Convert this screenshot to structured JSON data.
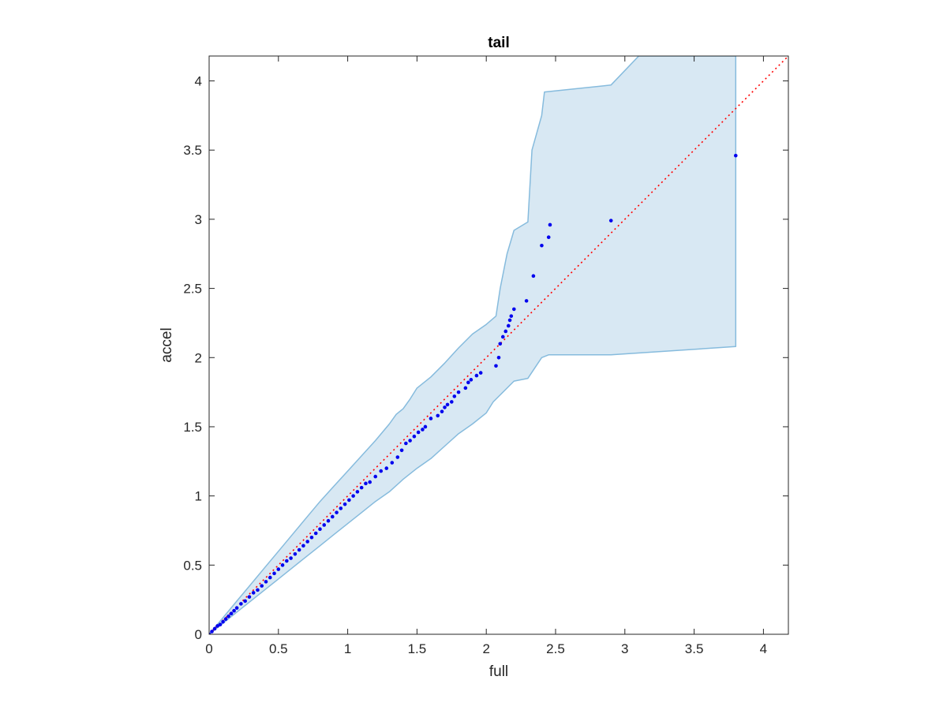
{
  "chart_data": {
    "type": "scatter",
    "title": "tail",
    "xlabel": "full",
    "ylabel": "accel",
    "xlim": [
      0,
      4.18
    ],
    "ylim": [
      0,
      4.18
    ],
    "xticks": [
      0,
      0.5,
      1,
      1.5,
      2,
      2.5,
      3,
      3.5,
      4
    ],
    "yticks": [
      0,
      0.5,
      1,
      1.5,
      2,
      2.5,
      3,
      3.5,
      4
    ],
    "xtick_labels": [
      "0",
      "0.5",
      "1",
      "1.5",
      "2",
      "2.5",
      "3",
      "3.5",
      "4"
    ],
    "ytick_labels": [
      "0",
      "0.5",
      "1",
      "1.5",
      "2",
      "2.5",
      "3",
      "3.5",
      "4"
    ],
    "grid": false,
    "colors": {
      "points": "#0000ee",
      "reference_line": "#ff0000",
      "band_fill": "#d8e8f3",
      "band_edge": "#86bbdd",
      "axes": "#262626"
    },
    "reference_line": {
      "style": "dotted",
      "from": [
        0,
        0
      ],
      "to": [
        4.18,
        4.18
      ]
    },
    "confidence_band": {
      "upper": [
        [
          0,
          0
        ],
        [
          0.1,
          0.12
        ],
        [
          0.2,
          0.24
        ],
        [
          0.3,
          0.36
        ],
        [
          0.4,
          0.48
        ],
        [
          0.5,
          0.6
        ],
        [
          0.6,
          0.72
        ],
        [
          0.7,
          0.84
        ],
        [
          0.8,
          0.96
        ],
        [
          0.9,
          1.07
        ],
        [
          1.0,
          1.18
        ],
        [
          1.1,
          1.29
        ],
        [
          1.2,
          1.4
        ],
        [
          1.3,
          1.52
        ],
        [
          1.35,
          1.59
        ],
        [
          1.4,
          1.63
        ],
        [
          1.45,
          1.7
        ],
        [
          1.5,
          1.78
        ],
        [
          1.6,
          1.86
        ],
        [
          1.7,
          1.96
        ],
        [
          1.8,
          2.07
        ],
        [
          1.9,
          2.17
        ],
        [
          2.0,
          2.24
        ],
        [
          2.07,
          2.3
        ],
        [
          2.1,
          2.5
        ],
        [
          2.15,
          2.75
        ],
        [
          2.2,
          2.92
        ],
        [
          2.3,
          2.98
        ],
        [
          2.33,
          3.5
        ],
        [
          2.4,
          3.75
        ],
        [
          2.42,
          3.92
        ],
        [
          2.9,
          3.97
        ],
        [
          3.1,
          4.18
        ],
        [
          3.8,
          4.18
        ]
      ],
      "lower": [
        [
          0,
          0
        ],
        [
          0.1,
          0.08
        ],
        [
          0.2,
          0.16
        ],
        [
          0.3,
          0.24
        ],
        [
          0.4,
          0.32
        ],
        [
          0.5,
          0.4
        ],
        [
          0.6,
          0.48
        ],
        [
          0.7,
          0.56
        ],
        [
          0.8,
          0.64
        ],
        [
          0.9,
          0.72
        ],
        [
          1.0,
          0.8
        ],
        [
          1.1,
          0.88
        ],
        [
          1.2,
          0.96
        ],
        [
          1.3,
          1.03
        ],
        [
          1.4,
          1.12
        ],
        [
          1.5,
          1.2
        ],
        [
          1.6,
          1.27
        ],
        [
          1.7,
          1.36
        ],
        [
          1.8,
          1.45
        ],
        [
          1.9,
          1.52
        ],
        [
          2.0,
          1.6
        ],
        [
          2.05,
          1.68
        ],
        [
          2.1,
          1.73
        ],
        [
          2.2,
          1.83
        ],
        [
          2.3,
          1.85
        ],
        [
          2.4,
          2.0
        ],
        [
          2.45,
          2.02
        ],
        [
          2.9,
          2.02
        ],
        [
          3.8,
          2.08
        ]
      ]
    },
    "series": [
      {
        "x": [
          0.0,
          0.02,
          0.04,
          0.06,
          0.08,
          0.1,
          0.12,
          0.14,
          0.16,
          0.18,
          0.2,
          0.23,
          0.26,
          0.29,
          0.32,
          0.35,
          0.38,
          0.41,
          0.44,
          0.47,
          0.5,
          0.53,
          0.56,
          0.59,
          0.62,
          0.65,
          0.68,
          0.71,
          0.74,
          0.77,
          0.8,
          0.83,
          0.86,
          0.89,
          0.92,
          0.95,
          0.98,
          1.01,
          1.04,
          1.07,
          1.1,
          1.13,
          1.16,
          1.2,
          1.24,
          1.28,
          1.32,
          1.36,
          1.39,
          1.42,
          1.45,
          1.48,
          1.51,
          1.54,
          1.56,
          1.6,
          1.65,
          1.68,
          1.7,
          1.72,
          1.75,
          1.77,
          1.8,
          1.85,
          1.87,
          1.89,
          1.93,
          1.96,
          2.07,
          2.09,
          2.1,
          2.12,
          2.14,
          2.16,
          2.17,
          2.18,
          2.2,
          2.29,
          2.34,
          2.4,
          2.45,
          2.46,
          2.9,
          3.8
        ],
        "y": [
          0.0,
          0.02,
          0.04,
          0.06,
          0.07,
          0.09,
          0.11,
          0.13,
          0.15,
          0.17,
          0.19,
          0.22,
          0.24,
          0.27,
          0.3,
          0.32,
          0.35,
          0.38,
          0.41,
          0.44,
          0.47,
          0.5,
          0.53,
          0.55,
          0.58,
          0.61,
          0.64,
          0.67,
          0.7,
          0.73,
          0.76,
          0.79,
          0.82,
          0.85,
          0.88,
          0.91,
          0.94,
          0.97,
          1.0,
          1.03,
          1.06,
          1.09,
          1.1,
          1.14,
          1.18,
          1.2,
          1.24,
          1.28,
          1.33,
          1.38,
          1.4,
          1.43,
          1.46,
          1.48,
          1.5,
          1.56,
          1.58,
          1.61,
          1.64,
          1.66,
          1.68,
          1.72,
          1.75,
          1.78,
          1.82,
          1.84,
          1.87,
          1.89,
          1.94,
          2.0,
          2.1,
          2.15,
          2.19,
          2.23,
          2.27,
          2.3,
          2.35,
          2.41,
          2.59,
          2.81,
          2.87,
          2.96,
          2.99,
          3.46
        ]
      }
    ]
  }
}
